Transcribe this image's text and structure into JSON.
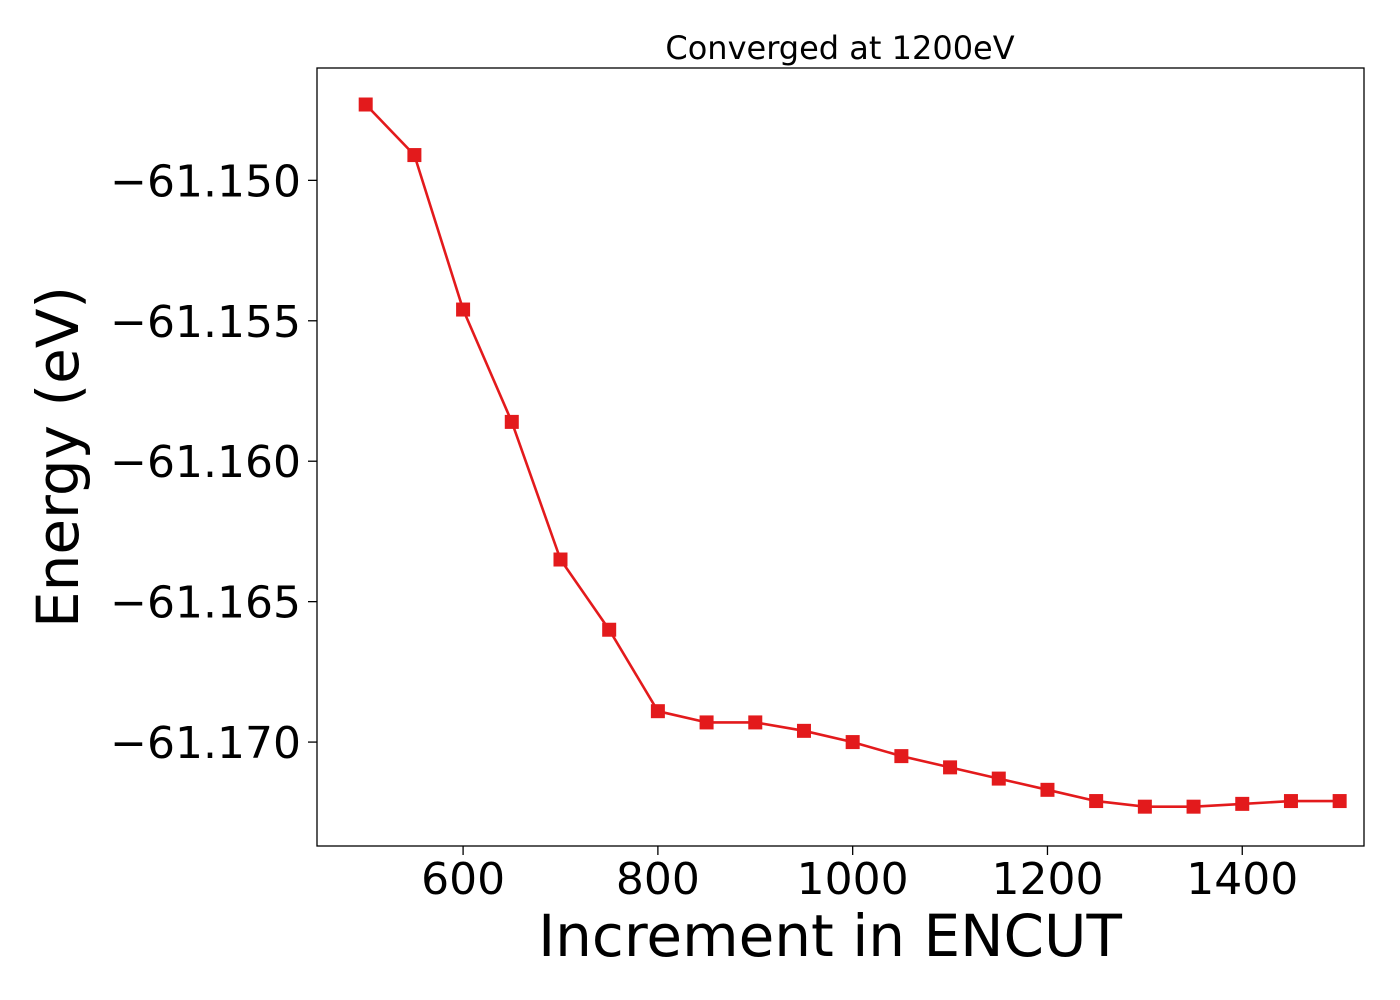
{
  "chart_data": {
    "type": "line",
    "title": "Converged at 1200eV",
    "xlabel": "Increment in ENCUT",
    "ylabel": "Energy (eV)",
    "xlim": [
      450,
      1525
    ],
    "ylim": [
      -61.1737,
      -61.146
    ],
    "x_ticks": [
      600,
      800,
      1000,
      1200,
      1400
    ],
    "x_tick_labels": [
      "600",
      "800",
      "1000",
      "1200",
      "1400"
    ],
    "y_ticks": [
      -61.15,
      -61.155,
      -61.16,
      -61.165,
      -61.17
    ],
    "y_tick_labels": [
      "−61.150",
      "−61.155",
      "−61.160",
      "−61.165",
      "−61.170"
    ],
    "grid": false,
    "marker": "square",
    "series": [
      {
        "color": "#e31a1c",
        "points": [
          {
            "x": 500,
            "y": -61.1473
          },
          {
            "x": 550,
            "y": -61.1491
          },
          {
            "x": 600,
            "y": -61.1546
          },
          {
            "x": 650,
            "y": -61.1586
          },
          {
            "x": 700,
            "y": -61.1635
          },
          {
            "x": 750,
            "y": -61.166
          },
          {
            "x": 800,
            "y": -61.1689
          },
          {
            "x": 850,
            "y": -61.1693
          },
          {
            "x": 900,
            "y": -61.1693
          },
          {
            "x": 950,
            "y": -61.1696
          },
          {
            "x": 1000,
            "y": -61.17
          },
          {
            "x": 1050,
            "y": -61.1705
          },
          {
            "x": 1100,
            "y": -61.1709
          },
          {
            "x": 1150,
            "y": -61.1713
          },
          {
            "x": 1200,
            "y": -61.1717
          },
          {
            "x": 1250,
            "y": -61.1721
          },
          {
            "x": 1300,
            "y": -61.1723
          },
          {
            "x": 1350,
            "y": -61.1723
          },
          {
            "x": 1400,
            "y": -61.1722
          },
          {
            "x": 1450,
            "y": -61.1721
          },
          {
            "x": 1500,
            "y": -61.1721
          }
        ]
      }
    ]
  }
}
